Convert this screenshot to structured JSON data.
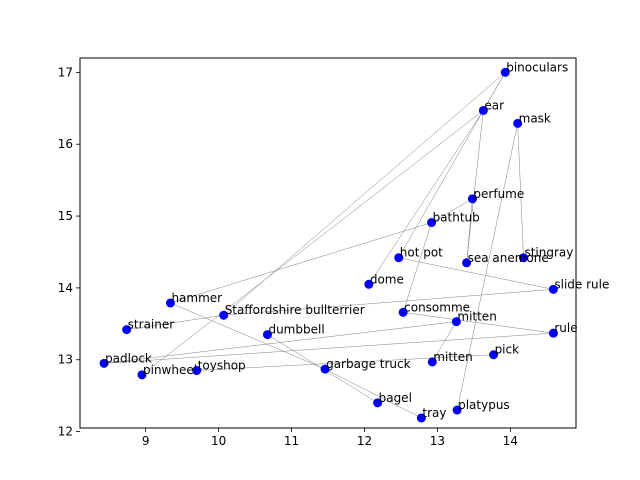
{
  "chart_data": {
    "type": "scatter",
    "title": "",
    "xlabel": "",
    "ylabel": "",
    "xlim": [
      8.1,
      14.9
    ],
    "ylim": [
      12.05,
      17.2
    ],
    "xticks": [
      9,
      10,
      11,
      12,
      13,
      14
    ],
    "yticks": [
      12,
      13,
      14,
      15,
      16,
      17
    ],
    "grid": false,
    "colors": {
      "marker": "#0000ff",
      "edge": "#808080"
    },
    "points": [
      {
        "label": "binoculars",
        "x": 13.93,
        "y": 17.0
      },
      {
        "label": "ear",
        "x": 13.63,
        "y": 16.47
      },
      {
        "label": "mask",
        "x": 14.1,
        "y": 16.29
      },
      {
        "label": "perfume",
        "x": 13.48,
        "y": 15.24
      },
      {
        "label": "bathtub",
        "x": 12.92,
        "y": 14.91
      },
      {
        "label": "hot pot",
        "x": 12.47,
        "y": 14.42
      },
      {
        "label": "sea anemone",
        "x": 13.4,
        "y": 14.35
      },
      {
        "label": "stingray",
        "x": 14.18,
        "y": 14.42
      },
      {
        "label": "dome",
        "x": 12.06,
        "y": 14.05
      },
      {
        "label": "slide rule",
        "x": 14.59,
        "y": 13.98
      },
      {
        "label": "hammer",
        "x": 9.34,
        "y": 13.79
      },
      {
        "label": "Staffordshire bullterrier",
        "x": 10.07,
        "y": 13.62
      },
      {
        "label": "consomme",
        "x": 12.53,
        "y": 13.66
      },
      {
        "label": "strainer",
        "x": 8.74,
        "y": 13.42
      },
      {
        "label": "mitten",
        "x": 13.26,
        "y": 13.53
      },
      {
        "label": "dumbbell",
        "x": 10.67,
        "y": 13.35
      },
      {
        "label": "rule",
        "x": 14.59,
        "y": 13.37
      },
      {
        "label": "pick",
        "x": 13.77,
        "y": 13.07
      },
      {
        "label": "padlock",
        "x": 8.43,
        "y": 12.95
      },
      {
        "label": "mitten",
        "x": 12.93,
        "y": 12.97
      },
      {
        "label": "toyshop",
        "x": 9.7,
        "y": 12.85
      },
      {
        "label": "garbage truck",
        "x": 11.46,
        "y": 12.87
      },
      {
        "label": "pinwheel",
        "x": 8.95,
        "y": 12.79
      },
      {
        "label": "bagel",
        "x": 12.18,
        "y": 12.4
      },
      {
        "label": "platypus",
        "x": 13.27,
        "y": 12.3
      },
      {
        "label": "tray",
        "x": 12.78,
        "y": 12.19
      }
    ],
    "edges": [
      [
        0,
        1
      ],
      [
        0,
        5
      ],
      [
        0,
        11
      ],
      [
        1,
        8
      ],
      [
        1,
        6
      ],
      [
        1,
        22
      ],
      [
        2,
        7
      ],
      [
        2,
        24
      ],
      [
        3,
        6
      ],
      [
        3,
        4
      ],
      [
        4,
        10
      ],
      [
        4,
        12
      ],
      [
        5,
        9
      ],
      [
        12,
        16
      ],
      [
        11,
        13
      ],
      [
        9,
        11
      ],
      [
        10,
        21
      ],
      [
        18,
        16
      ],
      [
        18,
        14
      ],
      [
        20,
        17
      ],
      [
        15,
        23
      ],
      [
        21,
        25
      ],
      [
        14,
        19
      ]
    ]
  }
}
